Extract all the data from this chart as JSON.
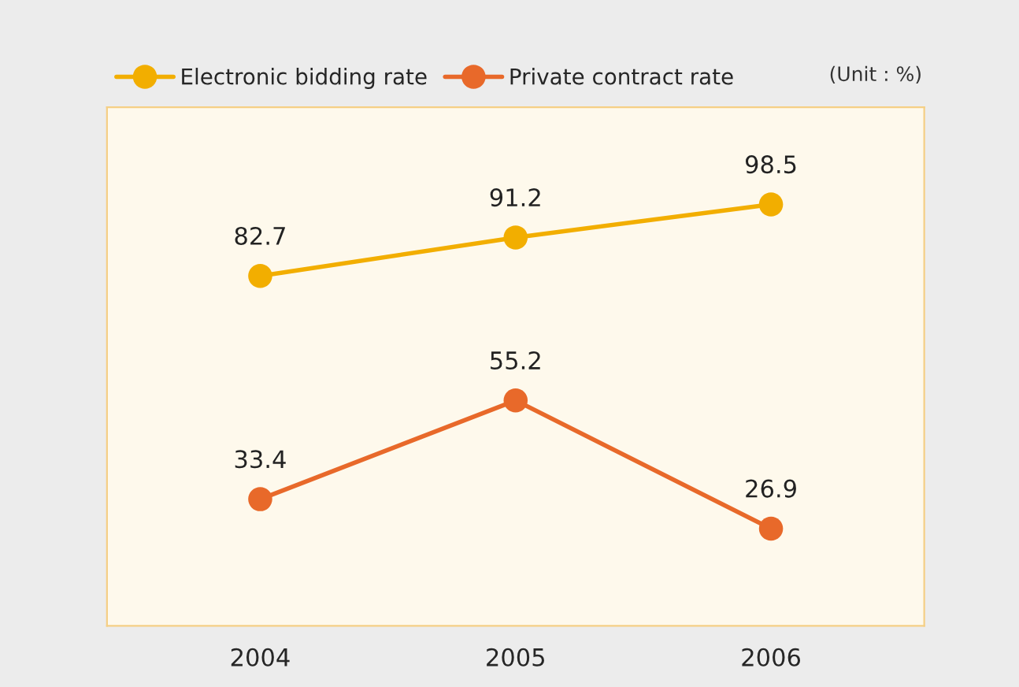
{
  "chart_data": {
    "type": "line",
    "categories": [
      "2004",
      "2005",
      "2006"
    ],
    "series": [
      {
        "name": "Electronic bidding rate",
        "color": "#f2ae00",
        "values": [
          82.7,
          91.2,
          98.5
        ]
      },
      {
        "name": "Private contract rate",
        "color": "#e8692a",
        "values": [
          33.4,
          55.2,
          26.9
        ]
      }
    ],
    "annotations": [
      "(Unit : %)"
    ],
    "data_labels": true,
    "marker": "circle",
    "line_style": "solid",
    "legend": "top left",
    "grid": false,
    "tick_labels": "x"
  }
}
